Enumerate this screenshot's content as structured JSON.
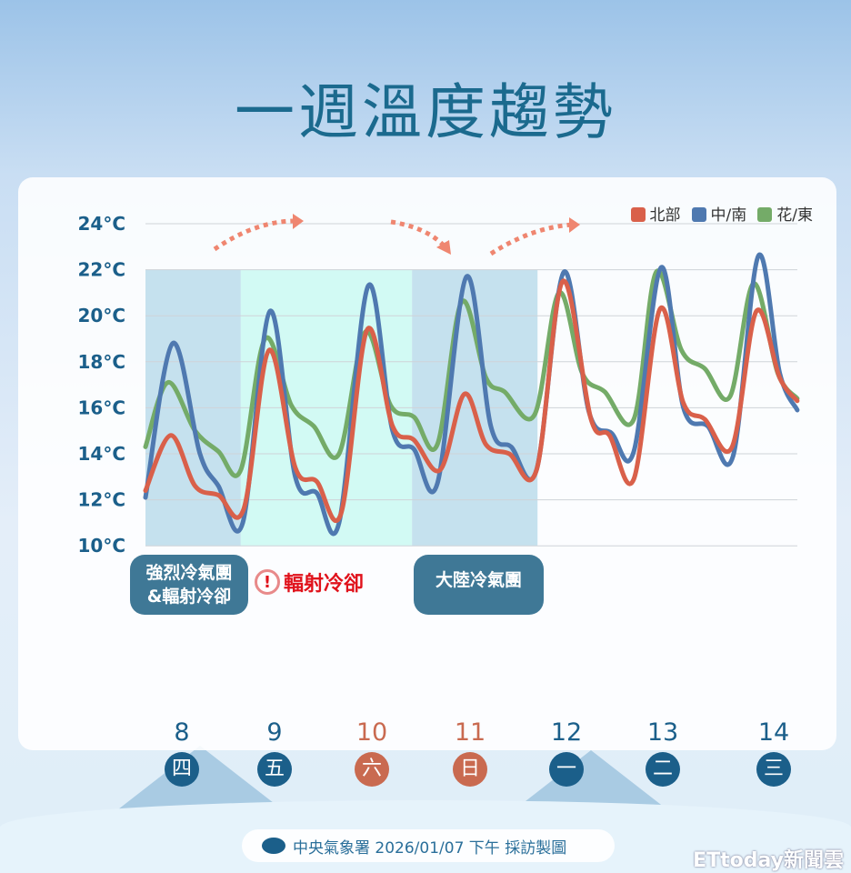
{
  "title": "一週溫度趨勢",
  "chart_data": {
    "type": "line",
    "title": "一週溫度趨勢",
    "ylim": [
      10,
      24
    ],
    "yticks": [
      "10°C",
      "12°C",
      "14°C",
      "16°C",
      "18°C",
      "20°C",
      "22°C",
      "24°C"
    ],
    "yticks_values": [
      10,
      12,
      14,
      16,
      18,
      20,
      22,
      24
    ],
    "xlim": [
      8,
      14.7
    ],
    "grid": true,
    "legend_position": "top-right",
    "series": [
      {
        "name": "北部",
        "color": "#d9604a",
        "points": [
          [
            8.0,
            12.4
          ],
          [
            8.26,
            14.8
          ],
          [
            8.51,
            12.6
          ],
          [
            8.75,
            12.2
          ],
          [
            9.01,
            11.6
          ],
          [
            9.27,
            18.5
          ],
          [
            9.54,
            13.4
          ],
          [
            9.76,
            12.8
          ],
          [
            10.01,
            11.4
          ],
          [
            10.28,
            19.4
          ],
          [
            10.54,
            15.2
          ],
          [
            10.76,
            14.6
          ],
          [
            11.03,
            13.3
          ],
          [
            11.28,
            16.6
          ],
          [
            11.5,
            14.4
          ],
          [
            11.74,
            14.0
          ],
          [
            12.02,
            13.3
          ],
          [
            12.29,
            21.5
          ],
          [
            12.58,
            15.5
          ],
          [
            12.77,
            14.8
          ],
          [
            13.02,
            12.9
          ],
          [
            13.29,
            20.3
          ],
          [
            13.53,
            16.2
          ],
          [
            13.75,
            15.5
          ],
          [
            14.03,
            14.3
          ],
          [
            14.28,
            20.2
          ],
          [
            14.52,
            17.3
          ],
          [
            14.7,
            16.3
          ]
        ]
      },
      {
        "name": "中/南",
        "color": "#4f79b0",
        "points": [
          [
            8.0,
            12.1
          ],
          [
            8.28,
            18.8
          ],
          [
            8.56,
            14.0
          ],
          [
            8.75,
            12.6
          ],
          [
            9.0,
            11.0
          ],
          [
            9.28,
            20.2
          ],
          [
            9.54,
            13.0
          ],
          [
            9.76,
            12.3
          ],
          [
            9.99,
            11.0
          ],
          [
            10.29,
            21.3
          ],
          [
            10.54,
            15.0
          ],
          [
            10.76,
            14.2
          ],
          [
            11.0,
            12.7
          ],
          [
            11.3,
            21.7
          ],
          [
            11.55,
            15.2
          ],
          [
            11.76,
            14.3
          ],
          [
            12.02,
            13.3
          ],
          [
            12.3,
            21.9
          ],
          [
            12.56,
            15.8
          ],
          [
            12.79,
            14.9
          ],
          [
            13.02,
            14.1
          ],
          [
            13.3,
            22.1
          ],
          [
            13.53,
            16.0
          ],
          [
            13.78,
            15.2
          ],
          [
            14.04,
            13.9
          ],
          [
            14.3,
            22.6
          ],
          [
            14.52,
            17.5
          ],
          [
            14.7,
            15.9
          ]
        ]
      },
      {
        "name": "花/東",
        "color": "#74ab68",
        "points": [
          [
            8.0,
            14.3
          ],
          [
            8.23,
            17.1
          ],
          [
            8.51,
            15.0
          ],
          [
            8.75,
            14.1
          ],
          [
            8.98,
            13.3
          ],
          [
            9.23,
            19.0
          ],
          [
            9.5,
            16.1
          ],
          [
            9.73,
            15.2
          ],
          [
            9.99,
            14.0
          ],
          [
            10.26,
            19.3
          ],
          [
            10.52,
            16.1
          ],
          [
            10.76,
            15.6
          ],
          [
            11.0,
            14.4
          ],
          [
            11.25,
            20.6
          ],
          [
            11.5,
            17.3
          ],
          [
            11.69,
            16.7
          ],
          [
            12.0,
            15.7
          ],
          [
            12.25,
            21.0
          ],
          [
            12.49,
            17.5
          ],
          [
            12.72,
            16.7
          ],
          [
            13.02,
            15.5
          ],
          [
            13.25,
            21.9
          ],
          [
            13.51,
            18.5
          ],
          [
            13.75,
            17.7
          ],
          [
            14.01,
            16.5
          ],
          [
            14.25,
            21.4
          ],
          [
            14.5,
            17.5
          ],
          [
            14.7,
            16.4
          ]
        ]
      }
    ],
    "shaded_periods": [
      {
        "from": 8.0,
        "to": 8.98,
        "color": "#c5e1ee"
      },
      {
        "from": 8.98,
        "to": 10.74,
        "color": "#d2faf4"
      },
      {
        "from": 10.74,
        "to": 12.03,
        "color": "#c5e1ee"
      }
    ],
    "annotations": [
      {
        "text": "強烈冷氣團\n&輻射冷卻",
        "line1": "強烈冷氣團",
        "line2": "&輻射冷卻"
      },
      {
        "text": "輻射冷卻"
      },
      {
        "text": "大陸冷氣團"
      }
    ],
    "days": [
      {
        "date": "8",
        "weekday": "四",
        "weekend": false
      },
      {
        "date": "9",
        "weekday": "五",
        "weekend": false
      },
      {
        "date": "10",
        "weekday": "六",
        "weekend": true
      },
      {
        "date": "11",
        "weekday": "日",
        "weekend": true
      },
      {
        "date": "12",
        "weekday": "一",
        "weekend": false
      },
      {
        "date": "13",
        "weekday": "二",
        "weekend": false
      },
      {
        "date": "14",
        "weekday": "三",
        "weekend": false
      }
    ]
  },
  "footer": {
    "text": "中央氣象署 2026/01/07 下午 採訪製圖"
  },
  "brand": "ETtoday新聞雲"
}
